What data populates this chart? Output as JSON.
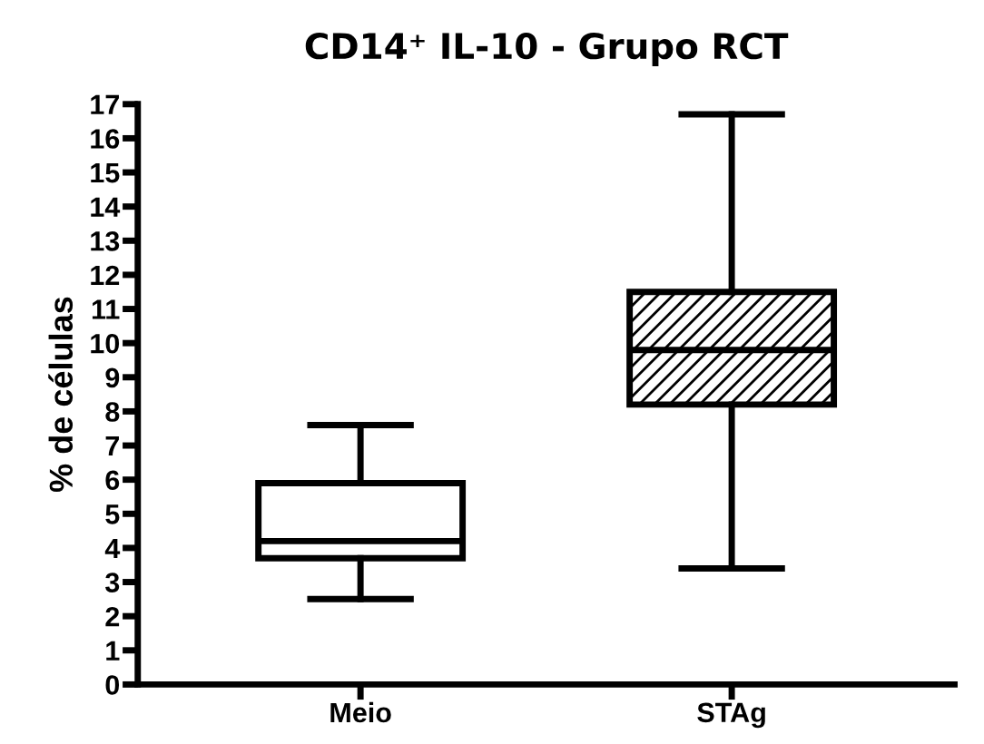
{
  "chart_data": {
    "type": "box",
    "title": "CD14⁺ IL-10 - Grupo RCT",
    "ylabel": "% de células",
    "categories": [
      "Meio",
      "STAg"
    ],
    "boxes": [
      {
        "low": 2.5,
        "q1": 3.7,
        "median": 4.2,
        "q3": 5.9,
        "high": 7.6
      },
      {
        "low": 3.4,
        "q1": 8.2,
        "median": 9.8,
        "q3": 11.5,
        "high": 16.7
      }
    ],
    "color": "#000000",
    "ylim": [
      0,
      17
    ],
    "yticks": [
      0,
      1,
      2,
      3,
      4,
      5,
      6,
      7,
      8,
      9,
      10,
      11,
      12,
      13,
      14,
      15,
      16,
      17
    ],
    "grid": false,
    "legend": false
  }
}
